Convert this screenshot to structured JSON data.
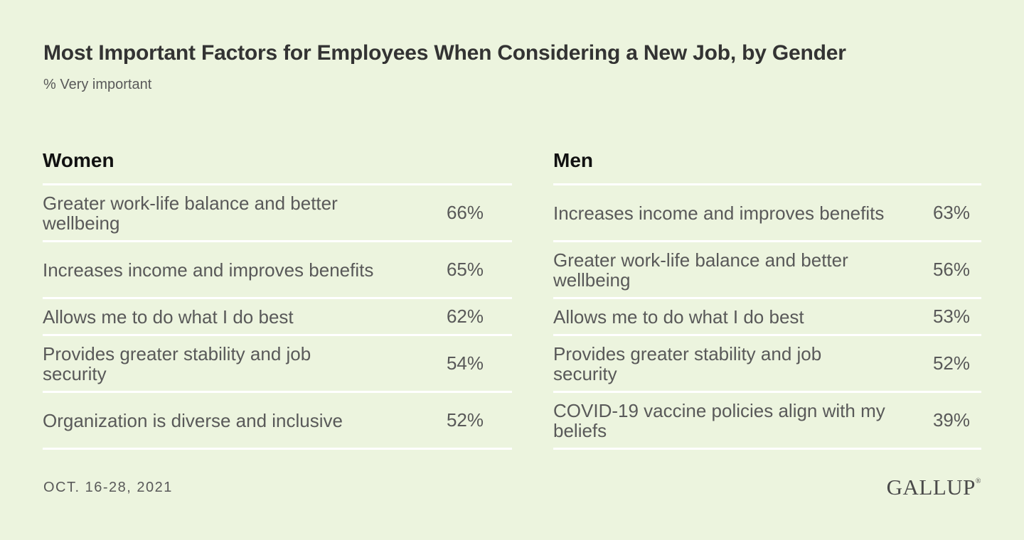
{
  "title": "Most Important Factors for Employees When Considering a New Job, by Gender",
  "subtitle": "% Very important",
  "footer": {
    "date": "OCT. 16-28, 2021",
    "logo": "GALLUP",
    "logo_mark": "®"
  },
  "colors": {
    "background": "#ecf4de",
    "divider": "#ffffff",
    "text": "#595959"
  },
  "chart_data": [
    {
      "type": "table",
      "title": "Women",
      "rows": [
        {
          "label": "Greater work-life balance and better wellbeing",
          "value": "66%"
        },
        {
          "label": "Increases income and improves benefits",
          "value": "65%"
        },
        {
          "label": "Allows me to do what I do best",
          "value": "62%"
        },
        {
          "label": "Provides greater stability and job security",
          "value": "54%"
        },
        {
          "label": "Organization is diverse and inclusive",
          "value": "52%"
        }
      ]
    },
    {
      "type": "table",
      "title": "Men",
      "rows": [
        {
          "label": "Increases income and improves benefits",
          "value": "63%"
        },
        {
          "label": "Greater work-life balance and better wellbeing",
          "value": "56%"
        },
        {
          "label": "Allows me to do what I do best",
          "value": "53%"
        },
        {
          "label": "Provides greater stability and job security",
          "value": "52%"
        },
        {
          "label": "COVID-19 vaccine policies align with my beliefs",
          "value": "39%"
        }
      ]
    }
  ]
}
